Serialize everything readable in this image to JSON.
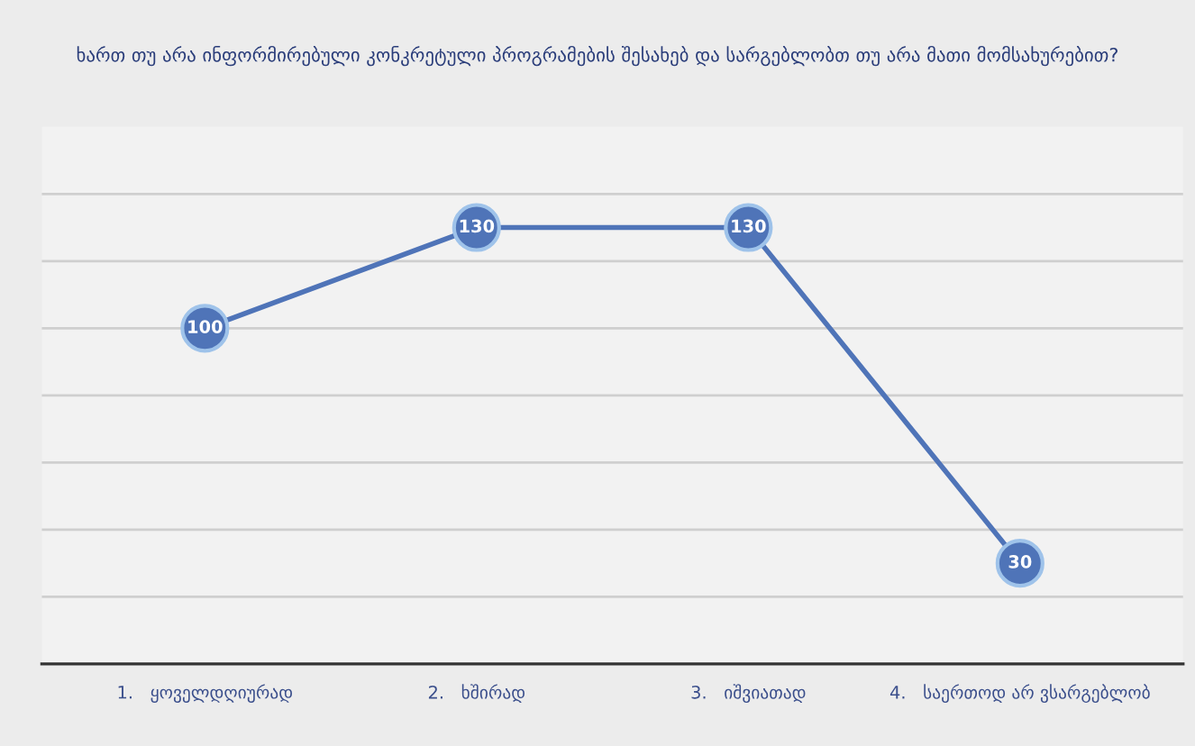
{
  "chart_data": {
    "type": "line",
    "title": "ხართ თუ არა ინფორმირებული კონკრეტული პროგრამების შესახებ და სარგებლობთ თუ არა მათი მომსახურებით?",
    "categories": [
      "1.   ყოველდღიურად",
      "2.   ხშირად",
      "3.   იშვიათად",
      "4.   საერთოდ არ ვსარგებლობ"
    ],
    "series": [
      {
        "color": "#4f74b8",
        "values": [
          100,
          130,
          130,
          30
        ]
      }
    ],
    "ylim": [
      0,
      160
    ],
    "yticks": [
      {
        "value": 20,
        "label": null
      },
      {
        "value": 40,
        "label": null
      },
      {
        "value": 60,
        "label": null
      },
      {
        "value": 80,
        "label": null
      },
      {
        "value": 100,
        "label": null
      },
      {
        "value": 120,
        "label": null
      },
      {
        "value": 140,
        "label": null
      }
    ],
    "grid": "y",
    "marker": "circle",
    "line_style": "solid",
    "data_labels": true,
    "legend": false
  }
}
